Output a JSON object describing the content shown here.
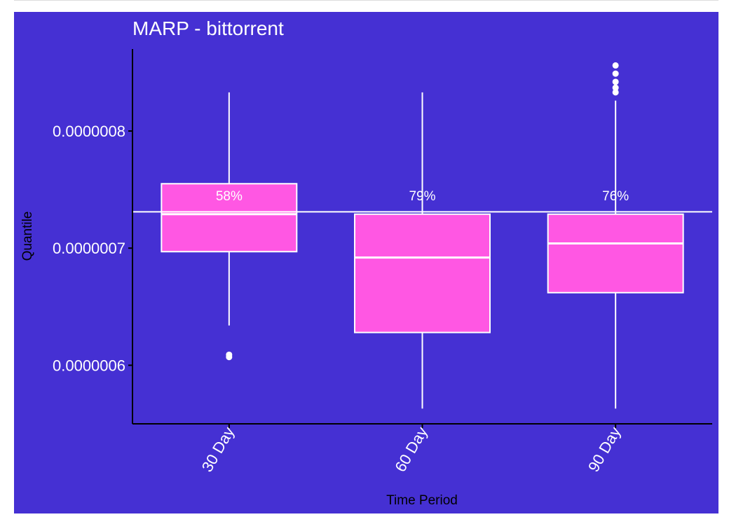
{
  "chart_data": {
    "type": "boxplot",
    "title": "MARP - bittorrent",
    "xlabel": "Time Period",
    "ylabel": "Quantile",
    "categories": [
      "30 Day",
      "60 Day",
      "90 Day"
    ],
    "yticks": [
      {
        "value": 6e-07,
        "label": "0.0000006"
      },
      {
        "value": 7e-07,
        "label": "0.0000007"
      },
      {
        "value": 8e-07,
        "label": "0.0000008"
      }
    ],
    "ylim": [
      5.5e-07,
      8.7e-07
    ],
    "reference_line": 7.31e-07,
    "boxes": [
      {
        "category": "30 Day",
        "whisker_low": 6.34e-07,
        "q1": 6.97e-07,
        "median": 7.29e-07,
        "q3": 7.55e-07,
        "whisker_high": 8.33e-07,
        "outliers": [
          6.07e-07,
          6.09e-07
        ],
        "label": "58%"
      },
      {
        "category": "60 Day",
        "whisker_low": 5.63e-07,
        "q1": 6.28e-07,
        "median": 6.92e-07,
        "q3": 7.29e-07,
        "whisker_high": 8.33e-07,
        "outliers": [],
        "label": "79%"
      },
      {
        "category": "90 Day",
        "whisker_low": 5.63e-07,
        "q1": 6.62e-07,
        "median": 7.04e-07,
        "q3": 7.29e-07,
        "whisker_high": 8.26e-07,
        "outliers": [
          8.33e-07,
          8.37e-07,
          8.42e-07,
          8.49e-07,
          8.56e-07
        ],
        "label": "76%"
      }
    ],
    "grid": false,
    "legend": "none",
    "colors": {
      "background": "#4530D3",
      "box_fill": "#FF57E3",
      "box_stroke": "#ffffff",
      "axis": "#000000",
      "reference_line": "#ffffff"
    }
  }
}
